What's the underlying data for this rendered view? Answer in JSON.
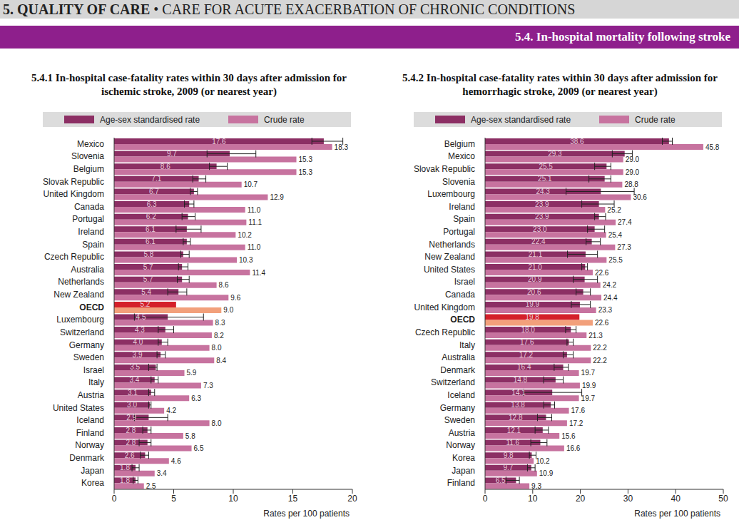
{
  "page": {
    "section": "5. QUALITY OF CARE",
    "separator": "•",
    "subsection": "CARE FOR ACUTE EXACERBATION OF CHRONIC CONDITIONS",
    "band": "5.4. In-hospital mortality following stroke"
  },
  "chart_data": [
    {
      "type": "bar",
      "orientation": "horizontal",
      "data_labels": true,
      "grid": false,
      "title": "5.4.1 In-hospital case-fatality rates within 30 days after admission for ischemic stroke, 2009 (or nearest year)",
      "x_label": "Rates per 100 patients",
      "xlim": [
        0,
        20
      ],
      "xticks": [
        0,
        5,
        10,
        15,
        20
      ],
      "categories": [
        "Mexico",
        "Slovenia",
        "Belgium",
        "Slovak Republic",
        "United Kingdom",
        "Canada",
        "Portugal",
        "Ireland",
        "Spain",
        "Czech Republic",
        "Australia",
        "Netherlands",
        "New Zealand",
        "OECD",
        "Luxembourg",
        "Switzerland",
        "Germany",
        "Sweden",
        "Israel",
        "Italy",
        "Austria",
        "United States",
        "Iceland",
        "Finland",
        "Norway",
        "Denmark",
        "Japan",
        "Korea"
      ],
      "series": [
        {
          "name": "Age-sex standardised rate",
          "color": "#8c2f64",
          "colors": [
            "#8c2f64",
            "#8c2f64",
            "#8c2f64",
            "#8c2f64",
            "#8c2f64",
            "#8c2f64",
            "#8c2f64",
            "#8c2f64",
            "#8c2f64",
            "#8c2f64",
            "#8c2f64",
            "#8c2f64",
            "#8c2f64",
            "#d4202a",
            "#8c2f64",
            "#8c2f64",
            "#8c2f64",
            "#8c2f64",
            "#8c2f64",
            "#8c2f64",
            "#8c2f64",
            "#8c2f64",
            "#8c2f64",
            "#8c2f64",
            "#8c2f64",
            "#8c2f64",
            "#8c2f64",
            "#8c2f64"
          ],
          "values": [
            17.6,
            9.7,
            8.6,
            7.1,
            6.7,
            6.3,
            6.2,
            6.1,
            6.1,
            5.8,
            5.7,
            5.7,
            5.4,
            5.2,
            4.5,
            4.3,
            4.0,
            3.9,
            3.5,
            3.4,
            3.1,
            3.0,
            2.9,
            2.8,
            2.8,
            2.6,
            1.8,
            1.8
          ],
          "value_labels": [
            "17.6",
            "9.7",
            "8.6",
            "7.1",
            "6.7",
            "6.3",
            "6.2",
            "6.1",
            "6.1",
            "5.8",
            "5.7",
            "5.7",
            "5.4",
            "5.2",
            "4.5",
            "4.3",
            "4.0",
            "3.9",
            "3.5",
            "3.4",
            "3.1",
            "3.0",
            "2.9",
            "2.8",
            "2.8",
            "2.6",
            "1.8",
            "1.8"
          ],
          "error_bars": [
            [
              16.6,
              19.2
            ],
            [
              7.8,
              11.9
            ],
            [
              8.0,
              9.5
            ],
            [
              6.6,
              7.7
            ],
            [
              6.4,
              7.0
            ],
            [
              5.9,
              6.7
            ],
            [
              5.7,
              6.8
            ],
            [
              5.2,
              7.3
            ],
            [
              5.8,
              6.4
            ],
            [
              5.6,
              6.3
            ],
            [
              5.4,
              6.2
            ],
            [
              5.3,
              6.3
            ],
            [
              4.5,
              6.1
            ],
            null,
            [
              1.7,
              7.5
            ],
            [
              3.7,
              5.0
            ],
            [
              3.7,
              4.5
            ],
            [
              3.6,
              4.3
            ],
            [
              2.9,
              3.6
            ],
            [
              3.1,
              3.7
            ],
            [
              2.9,
              3.4
            ],
            [
              2.9,
              3.1
            ],
            [
              1.7,
              4.5
            ],
            [
              2.4,
              3.1
            ],
            [
              2.1,
              3.1
            ],
            [
              2.2,
              2.9
            ],
            [
              1.5,
              2.1
            ],
            [
              1.6,
              2.0
            ]
          ]
        },
        {
          "name": "Crude rate",
          "color": "#c7739f",
          "colors": [
            "#c7739f",
            "#c7739f",
            "#c7739f",
            "#c7739f",
            "#c7739f",
            "#c7739f",
            "#c7739f",
            "#c7739f",
            "#c7739f",
            "#c7739f",
            "#c7739f",
            "#c7739f",
            "#c7739f",
            "#f2a07b",
            "#c7739f",
            "#c7739f",
            "#c7739f",
            "#c7739f",
            "#c7739f",
            "#c7739f",
            "#c7739f",
            "#c7739f",
            "#c7739f",
            "#c7739f",
            "#c7739f",
            "#c7739f",
            "#c7739f",
            "#c7739f"
          ],
          "values": [
            18.3,
            15.3,
            15.3,
            10.7,
            12.9,
            11.0,
            11.1,
            10.2,
            11.0,
            10.3,
            11.4,
            8.6,
            9.6,
            9.0,
            8.3,
            8.2,
            8.0,
            8.4,
            5.9,
            7.3,
            6.3,
            4.2,
            8.0,
            5.8,
            6.5,
            4.6,
            3.4,
            2.5
          ],
          "value_labels": [
            "18.3",
            "15.3",
            "15.3",
            "10.7",
            "12.9",
            "11.0",
            "11.1",
            "10.2",
            "11.0",
            "10.3",
            "11.4",
            "8.6",
            "9.6",
            "9.0",
            "8.3",
            "8.2",
            "8.0",
            "8.4",
            "5.9",
            "7.3",
            "6.3",
            "4.2",
            "8.0",
            "5.8",
            "6.5",
            "4.6",
            "3.4",
            "2.5"
          ]
        }
      ]
    },
    {
      "type": "bar",
      "orientation": "horizontal",
      "data_labels": true,
      "grid": false,
      "title": "5.4.2 In-hospital case-fatality rates within 30 days after admission for hemorrhagic stroke, 2009 (or nearest year)",
      "x_label": "Rates per 100 patients",
      "xlim": [
        0,
        50
      ],
      "xticks": [
        0,
        10,
        20,
        30,
        40,
        50
      ],
      "categories": [
        "Belgium",
        "Mexico",
        "Slovak Republic",
        "Slovenia",
        "Luxembourg",
        "Ireland",
        "Spain",
        "Portugal",
        "Netherlands",
        "New Zealand",
        "United States",
        "Israel",
        "Canada",
        "United Kingdom",
        "OECD",
        "Czech Republic",
        "Italy",
        "Australia",
        "Denmark",
        "Switzerland",
        "Iceland",
        "Germany",
        "Sweden",
        "Austria",
        "Norway",
        "Korea",
        "Japan",
        "Finland"
      ],
      "series": [
        {
          "name": "Age-sex standardised rate",
          "color": "#8c2f64",
          "colors": [
            "#8c2f64",
            "#8c2f64",
            "#8c2f64",
            "#8c2f64",
            "#8c2f64",
            "#8c2f64",
            "#8c2f64",
            "#8c2f64",
            "#8c2f64",
            "#8c2f64",
            "#8c2f64",
            "#8c2f64",
            "#8c2f64",
            "#8c2f64",
            "#d4202a",
            "#8c2f64",
            "#8c2f64",
            "#8c2f64",
            "#8c2f64",
            "#8c2f64",
            "#8c2f64",
            "#8c2f64",
            "#8c2f64",
            "#8c2f64",
            "#8c2f64",
            "#8c2f64",
            "#8c2f64",
            "#8c2f64"
          ],
          "values": [
            38.6,
            29.3,
            25.5,
            25.1,
            24.3,
            23.9,
            23.9,
            23.0,
            22.4,
            21.1,
            21.0,
            20.9,
            20.6,
            19.9,
            19.8,
            18.0,
            17.6,
            17.2,
            16.4,
            14.8,
            14.1,
            13.8,
            12.8,
            12.1,
            11.6,
            9.8,
            9.7,
            6.5
          ],
          "value_labels": [
            "38.6",
            "29.3",
            "25.5",
            "25.1",
            "24.3",
            "23.9",
            "23.9",
            "23.0",
            "22.4",
            "21.1",
            "21.0",
            "20.9",
            "20.6",
            "19.9",
            "19.8",
            "18.0",
            "17.6",
            "17.2",
            "16.4",
            "14.8",
            "14.1",
            "13.8",
            "12.8",
            "12.1",
            "11.6",
            "9.8",
            "9.7",
            "6.5"
          ],
          "error_bars": [
            [
              37.2,
              39.3
            ],
            [
              26.7,
              30.9
            ],
            [
              23.0,
              26.4
            ],
            [
              21.8,
              26.4
            ],
            [
              17.0,
              31.3
            ],
            [
              20.3,
              27.1
            ],
            [
              23.0,
              25.3
            ],
            [
              21.5,
              25.1
            ],
            [
              21.2,
              24.2
            ],
            [
              17.3,
              23.6
            ],
            [
              20.3,
              21.5
            ],
            [
              18.5,
              23.6
            ],
            [
              19.1,
              22.1
            ],
            [
              18.1,
              22.1
            ],
            null,
            [
              16.9,
              19.1
            ],
            [
              17.2,
              18.5
            ],
            [
              16.4,
              18.5
            ],
            [
              14.5,
              17.5
            ],
            [
              12.3,
              16.4
            ],
            [
              8.1,
              20.3
            ],
            [
              12.3,
              14.6
            ],
            [
              11.0,
              14.0
            ],
            [
              10.5,
              13.3
            ],
            [
              9.6,
              13.0
            ],
            [
              9.3,
              10.7
            ],
            [
              8.9,
              10.5
            ],
            [
              4.4,
              7.2
            ]
          ]
        },
        {
          "name": "Crude rate",
          "color": "#c7739f",
          "colors": [
            "#c7739f",
            "#c7739f",
            "#c7739f",
            "#c7739f",
            "#c7739f",
            "#c7739f",
            "#c7739f",
            "#c7739f",
            "#c7739f",
            "#c7739f",
            "#c7739f",
            "#c7739f",
            "#c7739f",
            "#c7739f",
            "#f2a07b",
            "#c7739f",
            "#c7739f",
            "#c7739f",
            "#c7739f",
            "#c7739f",
            "#c7739f",
            "#c7739f",
            "#c7739f",
            "#c7739f",
            "#c7739f",
            "#c7739f",
            "#c7739f",
            "#c7739f"
          ],
          "values": [
            45.8,
            29.0,
            29.0,
            28.8,
            30.6,
            25.2,
            27.4,
            25.4,
            27.3,
            25.5,
            22.6,
            24.2,
            24.4,
            23.3,
            22.6,
            21.3,
            22.2,
            22.2,
            19.7,
            19.9,
            19.7,
            17.6,
            17.2,
            15.6,
            16.6,
            10.2,
            10.9,
            9.3
          ],
          "value_labels": [
            "45.8",
            "29.0",
            "29.0",
            "28.8",
            "30.6",
            "25.2",
            "27.4",
            "25.4",
            "27.3",
            "25.5",
            "22.6",
            "24.2",
            "24.4",
            "23.3",
            "22.6",
            "21.3",
            "22.2",
            "22.2",
            "19.7",
            "19.9",
            "19.7",
            "17.6",
            "17.2",
            "15.6",
            "16.6",
            "10.2",
            "10.9",
            "9.3"
          ]
        }
      ]
    }
  ]
}
